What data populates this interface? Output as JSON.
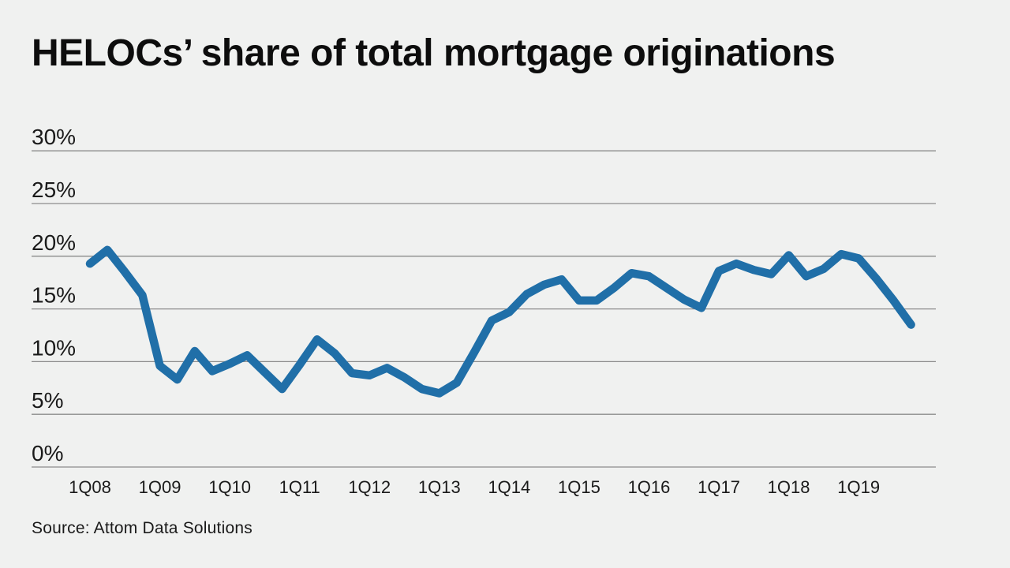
{
  "title": "HELOCs’ share of total mortgage originations",
  "source": "Source: Attom Data Solutions",
  "colors": {
    "background": "#f0f1f0",
    "line": "#206fa8",
    "grid": "#8c8c8c",
    "text": "#1a1a1a",
    "title_text": "#0d0d0d"
  },
  "chart_data": {
    "type": "line",
    "title": "HELOCs’ share of total mortgage originations",
    "series_name": "HELOC share of total mortgage originations",
    "unit": "percent",
    "xlabel": "",
    "ylabel": "",
    "ylim": [
      0,
      30
    ],
    "grid": true,
    "legend": false,
    "y_ticks": [
      0,
      5,
      10,
      15,
      20,
      25,
      30
    ],
    "y_tick_suffix": "%",
    "x_tick_labels": [
      "1Q08",
      "1Q09",
      "1Q10",
      "1Q11",
      "1Q12",
      "1Q13",
      "1Q14",
      "1Q15",
      "1Q16",
      "1Q17",
      "1Q18",
      "1Q19"
    ],
    "x_tick_every": 4,
    "categories": [
      "1Q08",
      "2Q08",
      "3Q08",
      "4Q08",
      "1Q09",
      "2Q09",
      "3Q09",
      "4Q09",
      "1Q10",
      "2Q10",
      "3Q10",
      "4Q10",
      "1Q11",
      "2Q11",
      "3Q11",
      "4Q11",
      "1Q12",
      "2Q12",
      "3Q12",
      "4Q12",
      "1Q13",
      "2Q13",
      "3Q13",
      "4Q13",
      "1Q14",
      "2Q14",
      "3Q14",
      "4Q14",
      "1Q15",
      "2Q15",
      "3Q15",
      "4Q15",
      "1Q16",
      "2Q16",
      "3Q16",
      "4Q16",
      "1Q17",
      "2Q17",
      "3Q17",
      "4Q17",
      "1Q18",
      "2Q18",
      "3Q18",
      "4Q18",
      "1Q19",
      "2Q19",
      "3Q19",
      "4Q19"
    ],
    "values": [
      19.3,
      20.6,
      18.5,
      16.3,
      9.6,
      8.3,
      11.0,
      9.1,
      9.8,
      10.6,
      9.0,
      7.4,
      9.7,
      12.1,
      10.8,
      8.9,
      8.7,
      9.4,
      8.5,
      7.4,
      7.0,
      8.0,
      10.9,
      13.9,
      14.7,
      16.4,
      17.3,
      17.8,
      15.8,
      15.8,
      17.0,
      18.4,
      18.1,
      17.0,
      15.9,
      15.1,
      18.6,
      19.3,
      18.7,
      18.3,
      20.1,
      18.1,
      18.8,
      20.2,
      19.8,
      17.9,
      15.8,
      13.5
    ]
  }
}
